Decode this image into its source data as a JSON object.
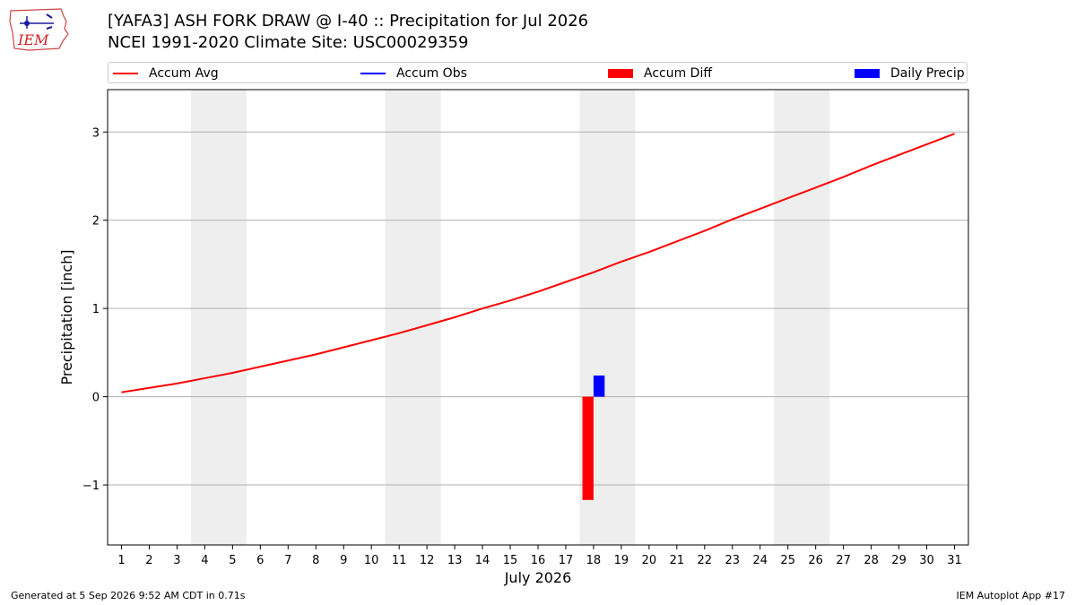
{
  "header": {
    "title_line1": "[YAFA3] ASH FORK DRAW @ I-40 :: Precipitation for Jul 2026",
    "title_line2": "NCEI 1991-2020 Climate Site: USC00029359",
    "logo_text": "IEM"
  },
  "footer": {
    "generated": "Generated at 5 Sep 2026 9:52 AM CDT in 0.71s",
    "app": "IEM Autoplot App #17"
  },
  "colors": {
    "accum_avg": "#ff0000",
    "accum_obs": "#0000ff",
    "accum_diff": "#ff0000",
    "daily_precip": "#0000ff",
    "weekend_shade": "#eeeeee",
    "grid": "#b0b0b0"
  },
  "chart_data": {
    "type": "line",
    "xlabel": "July 2026",
    "ylabel": "Precipitation [inch]",
    "xlim": [
      0.5,
      31.5
    ],
    "ylim": [
      -1.68,
      3.48
    ],
    "grid": "y",
    "legend_position": "top",
    "x": [
      1,
      2,
      3,
      4,
      5,
      6,
      7,
      8,
      9,
      10,
      11,
      12,
      13,
      14,
      15,
      16,
      17,
      18,
      19,
      20,
      21,
      22,
      23,
      24,
      25,
      26,
      27,
      28,
      29,
      30,
      31
    ],
    "x_tick_labels": [
      "1",
      "2",
      "3",
      "4",
      "5",
      "6",
      "7",
      "8",
      "9",
      "10",
      "11",
      "12",
      "13",
      "14",
      "15",
      "16",
      "17",
      "18",
      "19",
      "20",
      "21",
      "22",
      "23",
      "24",
      "25",
      "26",
      "27",
      "28",
      "29",
      "30",
      "31"
    ],
    "y_ticks": [
      -1,
      0,
      1,
      2,
      3
    ],
    "y_tick_labels": [
      "−1",
      "0",
      "1",
      "2",
      "3"
    ],
    "legend": [
      "Accum Avg",
      "Accum Obs",
      "Accum Diff",
      "Daily Precip"
    ],
    "weekend_shading": [
      [
        3.5,
        5.5
      ],
      [
        10.5,
        12.5
      ],
      [
        17.5,
        19.5
      ],
      [
        24.5,
        26.5
      ]
    ],
    "series": [
      {
        "name": "Accum Avg",
        "kind": "line",
        "values": [
          0.05,
          0.1,
          0.15,
          0.21,
          0.27,
          0.34,
          0.41,
          0.48,
          0.56,
          0.64,
          0.72,
          0.81,
          0.9,
          1.0,
          1.09,
          1.19,
          1.3,
          1.41,
          1.53,
          1.64,
          1.76,
          1.88,
          2.01,
          2.13,
          2.25,
          2.37,
          2.49,
          2.62,
          2.74,
          2.86,
          2.98
        ]
      },
      {
        "name": "Accum Diff",
        "kind": "bar",
        "points": [
          {
            "x": 18,
            "y": -1.17
          }
        ]
      },
      {
        "name": "Daily Precip",
        "kind": "bar",
        "points": [
          {
            "x": 18,
            "y": 0.24
          }
        ]
      }
    ]
  }
}
